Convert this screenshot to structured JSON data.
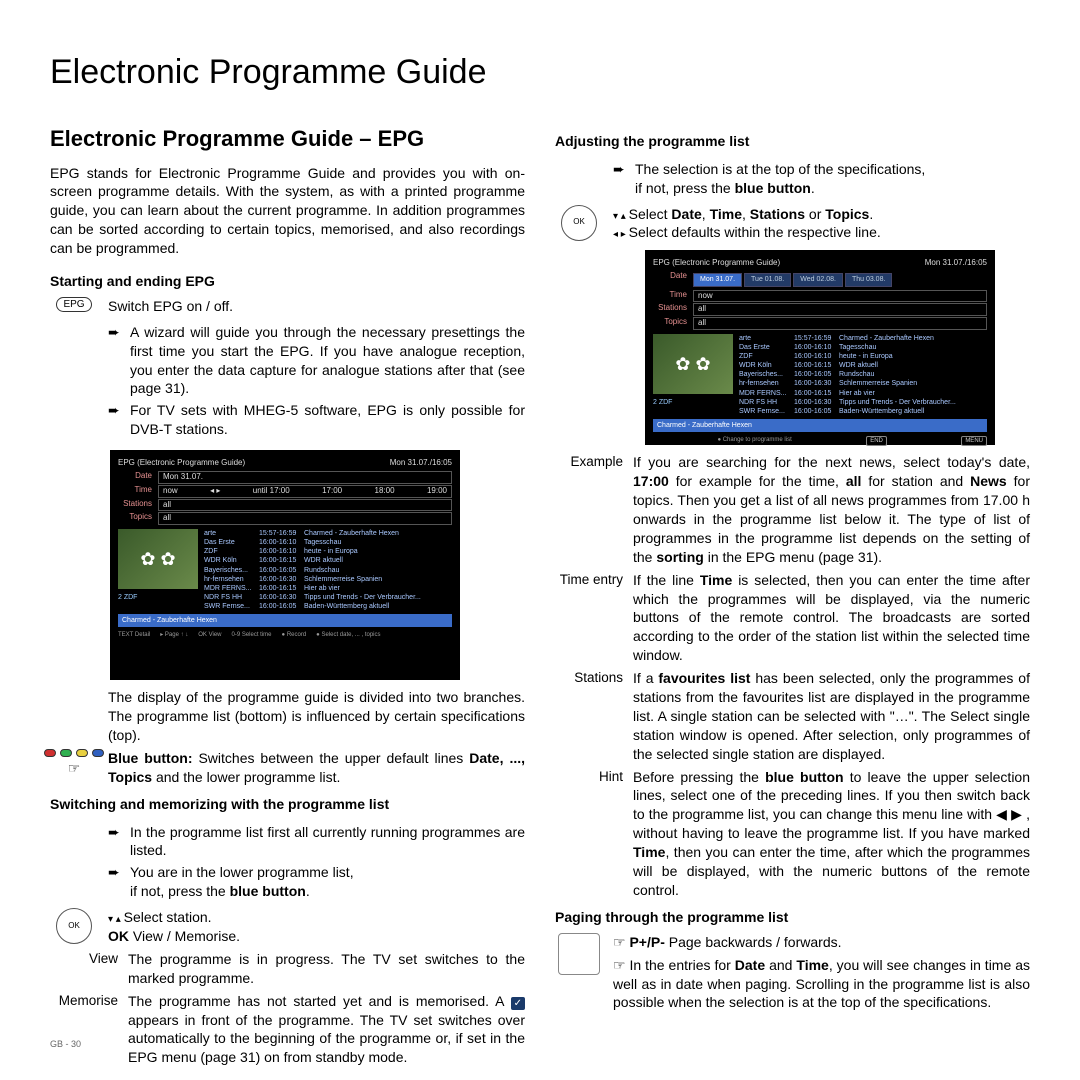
{
  "pageTitle": "Electronic Programme Guide",
  "sectionTitle": "Electronic Programme Guide – EPG",
  "intro": "EPG stands for Electronic Programme Guide and provides you with on-screen programme details. With the system, as with a printed programme guide, you can learn about the current programme. In addition programmes can be sorted according to certain topics, memorised, and also recordings can be programmed.",
  "left": {
    "sub1": "Starting and ending EPG",
    "epgLabel": "EPG",
    "switchText": "Switch EPG on / off.",
    "b1": "A wizard will guide you through the necessary presettings the first time you start the EPG. If you have analogue reception, you enter the data capture for analogue stations after that (see page 31).",
    "b2": "For TV sets with MHEG-5 software, EPG is only possible for DVB-T stations.",
    "afterShot": "The display of the programme guide is divided into two branches. The programme list (bottom) is influenced by certain specifications (top).",
    "blueBtn_a": "Blue button:",
    "blueBtn_b": " Switches between the upper default lines ",
    "blueBtn_c": "Date, ..., Topics",
    "blueBtn_d": " and the lower programme list.",
    "sub2": "Switching and memorizing with the programme list",
    "b3": "In the programme list first all currently running programmes are listed.",
    "b4a": "You are in the lower programme list,",
    "b4b": "if not, press the ",
    "b4c": "blue button",
    "b4d": ".",
    "selStation": "Select station.",
    "okView_a": "OK",
    "okView_b": "  View / Memorise.",
    "viewLabel": "View",
    "viewText": "The programme is in progress. The TV set switches to the marked programme.",
    "memLabel": "Memorise",
    "memText_a": "The programme has not started yet and is memorised. A ",
    "memText_b": " appears in front of the programme. The TV set switches over automatically to the beginning of the programme or, if set in the EPG menu (page 31) on from standby mode."
  },
  "right": {
    "sub1": "Adjusting the programme list",
    "b1a": "The selection is at the top of the specifications,",
    "b1b": "if not, press the ",
    "b1c": "blue button",
    "b1d": ".",
    "sel2a": "Select ",
    "sel2b": "Date",
    "sel2c": ", ",
    "sel2d": "Time",
    "sel2e": ", ",
    "sel2f": "Stations",
    "sel2g": " or ",
    "sel2h": "Topics",
    "sel2i": ".",
    "sel3": "Select defaults within the respective line.",
    "exLabel": "Example",
    "exText_a": "If you are searching for the next news, select today's date, ",
    "exText_b": "17:00",
    "exText_c": " for example for the time, ",
    "exText_d": "all",
    "exText_e": " for station and ",
    "exText_f": "News",
    "exText_g": " for topics. Then you get a list of all news programmes from 17.00 h onwards in the programme list below it. The type of list of programmes in the programme list depends on the setting of the ",
    "exText_h": "sorting",
    "exText_i": " in the EPG menu (page 31).",
    "teLabel": "Time entry",
    "teText_a": "If the line ",
    "teText_b": "Time",
    "teText_c": " is selected, then you can enter the time after which the programmes will be displayed, via the numeric buttons of the remote control. The broadcasts are sorted according to the order of the station list within the selected time window.",
    "stLabel": "Stations",
    "stText_a": "If a ",
    "stText_b": "favourites list",
    "stText_c": " has been selected, only the programmes of stations from the favourites list are displayed in the programme list. A single station can be selected with \"…\". The Select single station window is opened. After selection, only programmes of the selected single station are displayed.",
    "hiLabel": "Hint",
    "hiText_a": "Before pressing the ",
    "hiText_b": "blue button",
    "hiText_c": " to leave the upper selection lines, select one of the preceding lines. If you then switch back to the programme list, you can change this menu line with ◀  ▶ , without having to leave the programme list. If you have marked ",
    "hiText_d": "Time",
    "hiText_e": ", then you can enter the time, after which the programmes will be displayed, with the numeric buttons of the remote control.",
    "sub2": "Paging through the programme list",
    "pp_a": "P+/P-",
    "pp_b": " Page backwards / forwards.",
    "ppText_a": "In the entries for ",
    "ppText_b": "Date",
    "ppText_c": " and ",
    "ppText_d": "Time",
    "ppText_e": ", you will see changes in time as well as in date when paging. Scrolling in the programme list is also possible when the selection is at the top of the specifications."
  },
  "screenshot": {
    "title": "EPG (Electronic Programme Guide)",
    "datetime": "Mon 31.07./16:05",
    "filters": {
      "Date": "Mon 31.07.",
      "Time": "now",
      "Stations": "all",
      "Topics": "all"
    },
    "timeSlots": [
      "until 17:00",
      "17:00",
      "18:00",
      "19:00"
    ],
    "rows": [
      {
        "ch": "arte",
        "tm": "15:57-16:59",
        "pg": "Charmed - Zauberhafte Hexen",
        "hl": true
      },
      {
        "ch": "Das Erste",
        "tm": "16:00-16:10",
        "pg": "Tagesschau"
      },
      {
        "ch": "ZDF",
        "tm": "16:00-16:10",
        "pg": "heute - in Europa"
      },
      {
        "ch": "WDR Köln",
        "tm": "16:00-16:15",
        "pg": "WDR aktuell"
      },
      {
        "ch": "Bayerisches...",
        "tm": "16:00-16:05",
        "pg": "Rundschau"
      },
      {
        "ch": "hr-fernsehen",
        "tm": "16:00-16:30",
        "pg": "Schlemmerreise Spanien"
      },
      {
        "ch": "MDR FERNS...",
        "tm": "16:00-16:15",
        "pg": "Hier ab vier"
      },
      {
        "ch": "NDR FS HH",
        "tm": "16:00-16:30",
        "pg": "Tipps und Trends - Der Verbraucher..."
      },
      {
        "ch": "SWR Fernse...",
        "tm": "16:00-16:05",
        "pg": "Baden-Württemberg aktuell"
      }
    ],
    "thumbLabel": "2 ZDF",
    "footerBar": "Charmed - Zauberhafte Hexen",
    "hints": [
      "TEXT Detail",
      "▸ Page ↑ ↓",
      "OK View",
      "0-9 Select time",
      "● Record",
      "● Select date, ... , topics"
    ]
  },
  "screenshot2": {
    "title": "EPG (Electronic Programme Guide)",
    "datetime": "Mon 31.07./16:05",
    "tabs": [
      "Mon 31.07.",
      "Tue 01.08.",
      "Wed 02.08.",
      "Thu 03.08."
    ],
    "footerBar": "Charmed - Zauberhafte Hexen",
    "hint": "● Change to programme list",
    "badges": [
      "END",
      "MENU"
    ]
  },
  "footerPage": "GB - 30",
  "colors": {
    "red": "#d03030",
    "green": "#30b050",
    "yellow": "#e8d040",
    "blue": "#3060c0"
  }
}
